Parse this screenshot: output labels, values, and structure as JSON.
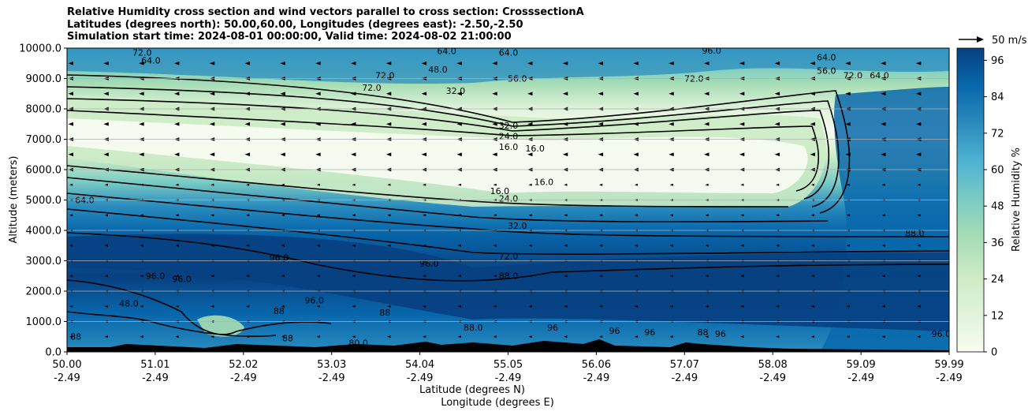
{
  "title_lines": [
    "Relative Humidity cross section and wind vectors parallel to cross section: CrosssectionA",
    "Latitudes (degrees north): 50.00,60.00, Longitudes (degrees east): -2.50,-2.50",
    "Simulation start time: 2024-08-01 00:00:00, Valid time: 2024-08-02 21:00:00"
  ],
  "chart_data": {
    "type": "heatmap",
    "ylabel": "Altitude (meters)",
    "xlabel_lat": "Latitude (degrees N)",
    "xlabel_lon": "Longitude (degrees E)",
    "ylim": [
      0,
      10000
    ],
    "yticks": [
      "0.0",
      "1000.0",
      "2000.0",
      "3000.0",
      "4000.0",
      "5000.0",
      "6000.0",
      "7000.0",
      "8000.0",
      "9000.0",
      "10000.0"
    ],
    "x_lat_ticks": [
      "50.00",
      "51.01",
      "52.02",
      "53.03",
      "54.04",
      "55.05",
      "56.06",
      "57.07",
      "58.08",
      "59.09",
      "59.99"
    ],
    "x_lon_ticks": [
      "-2.49",
      "-2.49",
      "-2.49",
      "-2.49",
      "-2.49",
      "-2.49",
      "-2.49",
      "-2.49",
      "-2.49",
      "-2.49",
      "-2.49"
    ],
    "grid": "horizontal",
    "colorbar": {
      "label": "Relative Humidity %",
      "ticks": [
        "0",
        "12",
        "24",
        "36",
        "48",
        "60",
        "72",
        "84",
        "96"
      ],
      "range": [
        0,
        100
      ],
      "levels": 25,
      "colormap": "GnBu",
      "colors": [
        "#f7fcf0",
        "#e0f3db",
        "#ccebc5",
        "#a8ddb5",
        "#7bccc4",
        "#4eb3d3",
        "#2b8cbe",
        "#0868ac",
        "#084081"
      ]
    },
    "quiver_key": "50 m/s",
    "contour_labels": [
      {
        "t": "72.0",
        "lat": 50.85,
        "z": 9750
      },
      {
        "t": "64.0",
        "lat": 50.95,
        "z": 9500
      },
      {
        "t": "64.0",
        "lat": 54.3,
        "z": 9800
      },
      {
        "t": "64.0",
        "lat": 55.0,
        "z": 9750
      },
      {
        "t": "96.0",
        "lat": 57.3,
        "z": 9820
      },
      {
        "t": "72.0",
        "lat": 53.45,
        "z": 8600
      },
      {
        "t": "72.0",
        "lat": 53.6,
        "z": 9000
      },
      {
        "t": "56.0",
        "lat": 55.1,
        "z": 8900
      },
      {
        "t": "32.0",
        "lat": 54.4,
        "z": 8500
      },
      {
        "t": "48.0",
        "lat": 54.2,
        "z": 9200
      },
      {
        "t": "64.0",
        "lat": 58.6,
        "z": 9600
      },
      {
        "t": "56.0",
        "lat": 58.6,
        "z": 9150
      },
      {
        "t": "72.0",
        "lat": 58.9,
        "z": 9000
      },
      {
        "t": "64.0",
        "lat": 59.2,
        "z": 9000
      },
      {
        "t": "72.0",
        "lat": 57.1,
        "z": 8900
      },
      {
        "t": "32.0",
        "lat": 55.0,
        "z": 7350
      },
      {
        "t": "24.0",
        "lat": 55.0,
        "z": 7000
      },
      {
        "t": "16.0",
        "lat": 55.0,
        "z": 6650
      },
      {
        "t": "16.0",
        "lat": 55.3,
        "z": 6600
      },
      {
        "t": "16.0",
        "lat": 54.9,
        "z": 5200
      },
      {
        "t": "16.0",
        "lat": 55.4,
        "z": 5500
      },
      {
        "t": "24.0",
        "lat": 55.0,
        "z": 4950
      },
      {
        "t": "32.0",
        "lat": 55.1,
        "z": 4050
      },
      {
        "t": "72.0",
        "lat": 55.0,
        "z": 3050
      },
      {
        "t": "88.0",
        "lat": 55.0,
        "z": 2400
      },
      {
        "t": "64.0",
        "lat": 50.2,
        "z": 4900
      },
      {
        "t": "88.0",
        "lat": 59.6,
        "z": 3800
      },
      {
        "t": "96.0",
        "lat": 51.0,
        "z": 2400
      },
      {
        "t": "96.0",
        "lat": 51.3,
        "z": 2300
      },
      {
        "t": "96.0",
        "lat": 52.4,
        "z": 3000
      },
      {
        "t": "96.0",
        "lat": 54.1,
        "z": 2800
      },
      {
        "t": "96.0",
        "lat": 52.8,
        "z": 1600
      },
      {
        "t": "48.0",
        "lat": 50.7,
        "z": 1500
      },
      {
        "t": "88",
        "lat": 52.4,
        "z": 1250
      },
      {
        "t": "88",
        "lat": 53.6,
        "z": 1200
      },
      {
        "t": "88.0",
        "lat": 54.6,
        "z": 700
      },
      {
        "t": "88",
        "lat": 52.5,
        "z": 350
      },
      {
        "t": "80.0",
        "lat": 53.3,
        "z": 200
      },
      {
        "t": "88",
        "lat": 50.1,
        "z": 400
      },
      {
        "t": "96",
        "lat": 56.2,
        "z": 600
      },
      {
        "t": "96",
        "lat": 56.6,
        "z": 550
      },
      {
        "t": "96",
        "lat": 57.4,
        "z": 500
      },
      {
        "t": "88",
        "lat": 57.2,
        "z": 550
      },
      {
        "t": "96.0",
        "lat": 59.9,
        "z": 500
      },
      {
        "t": "96",
        "lat": 55.5,
        "z": 700
      }
    ]
  }
}
